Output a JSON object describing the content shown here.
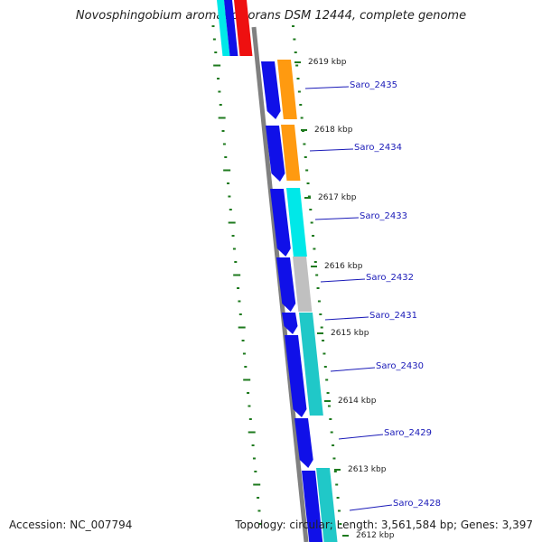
{
  "title": "Novosphingobium aromaticivorans DSM 12444, complete genome",
  "footer": {
    "accession": "Accession: NC_007794",
    "summary": "Topology: circular; Length: 3,561,584 bp; Genes: 3,397"
  },
  "ticks": [
    "2619 kbp",
    "2618 kbp",
    "2617 kbp",
    "2616 kbp",
    "2615 kbp",
    "2614 kbp",
    "2613 kbp",
    "2612 kbp"
  ],
  "genes": [
    "Saro_2435",
    "Saro_2434",
    "Saro_2433",
    "Saro_2432",
    "Saro_2431",
    "Saro_2430",
    "Saro_2429",
    "Saro_2428"
  ],
  "colors": {
    "cds": "#1010e8",
    "orange": "#ff9a10",
    "cyan": "#00e8e8",
    "teal": "#20c8c8",
    "gray": "#c0c0c0",
    "red": "#ee1010",
    "backbone": "#808080",
    "gc": "#1e7a1e",
    "label": "#1a1ab8"
  }
}
